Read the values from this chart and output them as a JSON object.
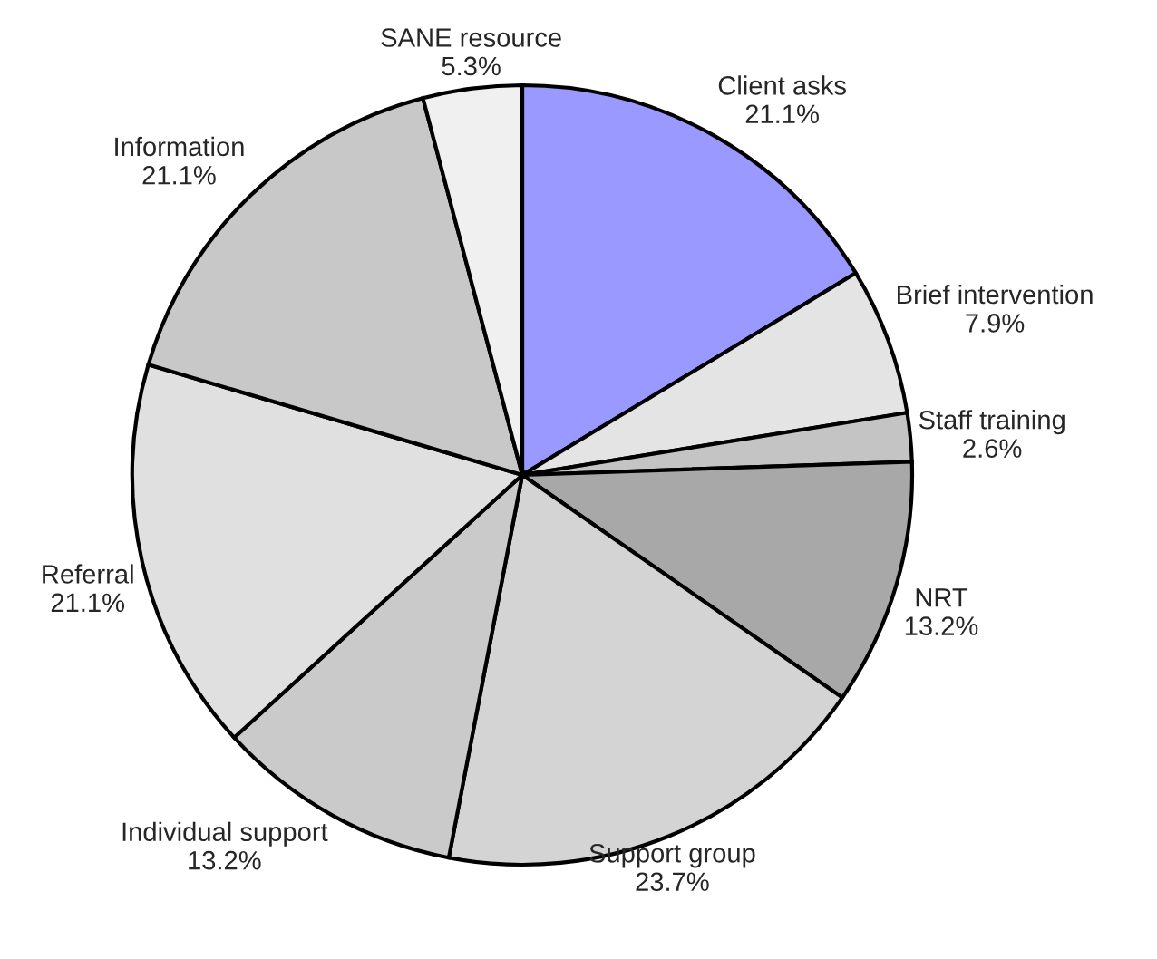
{
  "chart_data": {
    "type": "pie",
    "categories": [
      "Client asks",
      "Brief intervention",
      "Staff training",
      "NRT",
      "Support group",
      "Individual support",
      "Referral",
      "Information",
      "SANE resource"
    ],
    "values": [
      21.1,
      7.9,
      2.6,
      13.2,
      23.7,
      13.2,
      21.1,
      21.1,
      5.3
    ],
    "value_labels": [
      "21.1%",
      "7.9%",
      "2.6%",
      "13.2%",
      "23.7%",
      "13.2%",
      "21.1%",
      "21.1%",
      "5.3%"
    ],
    "colors": [
      "#9999ff",
      "#e4e4e4",
      "#c4c4c4",
      "#a8a8a8",
      "#d4d4d4",
      "#cacaca",
      "#e0e0e0",
      "#c8c8c8",
      "#f0f0f0"
    ],
    "legend": false
  }
}
